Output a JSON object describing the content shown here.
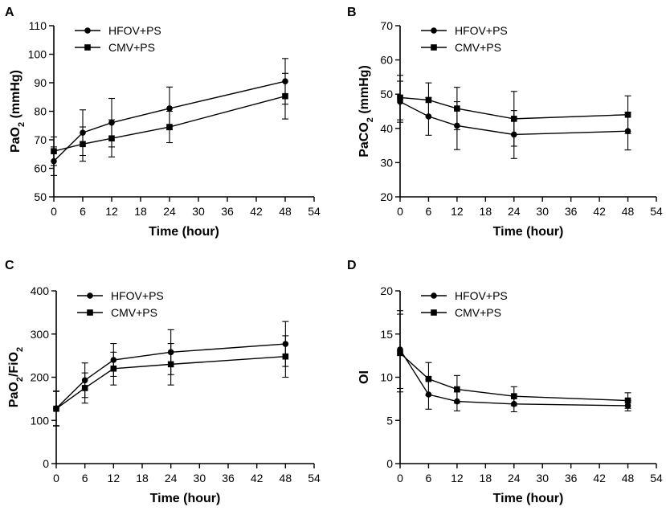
{
  "chart_data": [
    {
      "panel": "A",
      "type": "line",
      "xlabel": "Time (hour)",
      "ylabel": "PaO",
      "ylabel_sub": "2",
      "ylabel_suffix": " (mmHg)",
      "xlim": [
        0,
        54
      ],
      "ylim": [
        50,
        110
      ],
      "xticks": [
        0,
        6,
        12,
        18,
        24,
        30,
        36,
        42,
        48,
        54
      ],
      "yticks": [
        50,
        60,
        70,
        80,
        90,
        100,
        110
      ],
      "legend_position": "top-left",
      "series": [
        {
          "name": "HFOV+PS",
          "marker": "circle",
          "x": [
            0,
            6,
            12,
            24,
            48
          ],
          "y": [
            62.5,
            72.5,
            76,
            81,
            90.5
          ],
          "err": [
            5,
            8,
            8.5,
            7.5,
            8
          ]
        },
        {
          "name": "CMV+PS",
          "marker": "square",
          "x": [
            0,
            6,
            12,
            24,
            48
          ],
          "y": [
            66,
            68.5,
            70.5,
            74.5,
            85.3
          ],
          "err": [
            5,
            6,
            6.5,
            5.5,
            8
          ]
        }
      ]
    },
    {
      "panel": "B",
      "type": "line",
      "xlabel": "Time (hour)",
      "ylabel": "PaCO",
      "ylabel_sub": "2",
      "ylabel_suffix": " (mmHg)",
      "xlim": [
        0,
        54
      ],
      "ylim": [
        20,
        70
      ],
      "xticks": [
        0,
        6,
        12,
        18,
        24,
        30,
        36,
        42,
        48,
        54
      ],
      "yticks": [
        20,
        30,
        40,
        50,
        60,
        70
      ],
      "legend_position": "top-left",
      "series": [
        {
          "name": "HFOV+PS",
          "marker": "circle",
          "x": [
            0,
            6,
            12,
            24,
            48
          ],
          "y": [
            47.8,
            43.5,
            40.8,
            38.2,
            39.2
          ],
          "err": [
            6,
            5.5,
            7,
            7,
            5.5
          ]
        },
        {
          "name": "CMV+PS",
          "marker": "square",
          "x": [
            0,
            6,
            12,
            24,
            48
          ],
          "y": [
            49,
            48.3,
            45.8,
            42.8,
            44
          ],
          "err": [
            6.5,
            5,
            6.2,
            8,
            5.5
          ]
        }
      ]
    },
    {
      "panel": "C",
      "type": "line",
      "xlabel": "Time (hour)",
      "ylabel": "PaO",
      "ylabel_sub": "2",
      "ylabel_suffix": "/FiO",
      "ylabel_sub2": "2",
      "xlim": [
        0,
        54
      ],
      "ylim": [
        0,
        400
      ],
      "xticks": [
        0,
        6,
        12,
        18,
        24,
        30,
        36,
        42,
        48,
        54
      ],
      "yticks": [
        0,
        100,
        200,
        300,
        400
      ],
      "legend_position": "top-left",
      "series": [
        {
          "name": "HFOV+PS",
          "marker": "circle",
          "x": [
            0,
            6,
            12,
            24,
            48
          ],
          "y": [
            128,
            193,
            240,
            258,
            277
          ],
          "err": [
            40,
            40,
            38,
            52,
            52
          ]
        },
        {
          "name": "CMV+PS",
          "marker": "square",
          "x": [
            0,
            6,
            12,
            24,
            48
          ],
          "y": [
            127,
            175,
            220,
            230,
            248
          ],
          "err": [
            40,
            35,
            38,
            48,
            48
          ]
        }
      ]
    },
    {
      "panel": "D",
      "type": "line",
      "xlabel": "Time (hour)",
      "ylabel": "OI",
      "xlim": [
        0,
        54
      ],
      "ylim": [
        0,
        20
      ],
      "xticks": [
        0,
        6,
        12,
        18,
        24,
        30,
        36,
        42,
        48,
        54
      ],
      "yticks": [
        0,
        5,
        10,
        15,
        20
      ],
      "legend_position": "top-left",
      "series": [
        {
          "name": "HFOV+PS",
          "marker": "circle",
          "x": [
            0,
            6,
            12,
            24,
            48
          ],
          "y": [
            13.2,
            8,
            7.2,
            6.9,
            6.7
          ],
          "err": [
            4.5,
            1.7,
            1.1,
            0.9,
            0.6
          ]
        },
        {
          "name": "CMV+PS",
          "marker": "square",
          "x": [
            0,
            6,
            12,
            24,
            48
          ],
          "y": [
            12.8,
            9.8,
            8.6,
            7.8,
            7.3
          ],
          "err": [
            4.5,
            1.9,
            1.6,
            1.1,
            0.9
          ]
        }
      ]
    }
  ]
}
